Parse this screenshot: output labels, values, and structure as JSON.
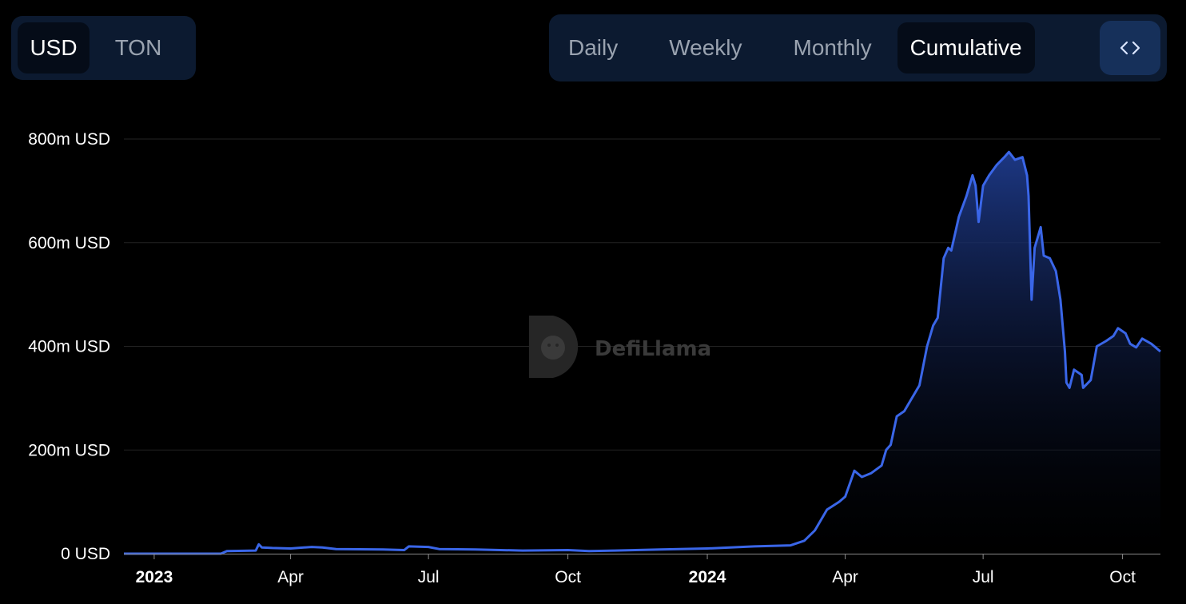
{
  "currency_toggle": {
    "options": [
      "USD",
      "TON"
    ],
    "selected": "USD"
  },
  "period_toggle": {
    "options": [
      "Daily",
      "Weekly",
      "Monthly",
      "Cumulative"
    ],
    "selected": "Cumulative",
    "embed_icon": "code-brackets-icon"
  },
  "watermark": "DefiLlama",
  "colors": {
    "line": "#3a66e8",
    "area_top": "#1e3a8a",
    "toggle_bg": "#0c1a30",
    "embed_bg": "#16305a",
    "grid": "#232323"
  },
  "chart_data": {
    "type": "area",
    "title": "",
    "xlabel": "",
    "ylabel": "",
    "ylim": [
      0,
      800000000
    ],
    "y_ticks": [
      {
        "value": 0,
        "label": "0 USD"
      },
      {
        "value": 200000000,
        "label": "200m USD"
      },
      {
        "value": 400000000,
        "label": "400m USD"
      },
      {
        "value": 600000000,
        "label": "600m USD"
      },
      {
        "value": 800000000,
        "label": "800m USD"
      }
    ],
    "x_range": [
      "2022-12-12",
      "2024-10-26"
    ],
    "x_ticks": [
      {
        "date": "2023-01-01",
        "label": "2023",
        "bold": true
      },
      {
        "date": "2023-04-01",
        "label": "Apr",
        "bold": false
      },
      {
        "date": "2023-07-01",
        "label": "Jul",
        "bold": false
      },
      {
        "date": "2023-10-01",
        "label": "Oct",
        "bold": false
      },
      {
        "date": "2024-01-01",
        "label": "2024",
        "bold": true
      },
      {
        "date": "2024-04-01",
        "label": "Apr",
        "bold": false
      },
      {
        "date": "2024-07-01",
        "label": "Jul",
        "bold": false
      },
      {
        "date": "2024-10-01",
        "label": "Oct",
        "bold": false
      }
    ],
    "grid": true,
    "legend": "none",
    "series": [
      {
        "points": [
          [
            "2022-12-12",
            0
          ],
          [
            "2023-01-15",
            0
          ],
          [
            "2023-02-14",
            0
          ],
          [
            "2023-02-18",
            5000000
          ],
          [
            "2023-03-09",
            6000000
          ],
          [
            "2023-03-11",
            18000000
          ],
          [
            "2023-03-13",
            12000000
          ],
          [
            "2023-03-20",
            11000000
          ],
          [
            "2023-04-01",
            10000000
          ],
          [
            "2023-04-15",
            13000000
          ],
          [
            "2023-04-22",
            12000000
          ],
          [
            "2023-05-01",
            9000000
          ],
          [
            "2023-06-01",
            8000000
          ],
          [
            "2023-06-15",
            7000000
          ],
          [
            "2023-06-18",
            14000000
          ],
          [
            "2023-07-01",
            13000000
          ],
          [
            "2023-07-08",
            9000000
          ],
          [
            "2023-08-01",
            8000000
          ],
          [
            "2023-09-01",
            6000000
          ],
          [
            "2023-10-01",
            7000000
          ],
          [
            "2023-10-15",
            5000000
          ],
          [
            "2023-11-01",
            6000000
          ],
          [
            "2023-12-01",
            8000000
          ],
          [
            "2024-01-01",
            10000000
          ],
          [
            "2024-02-01",
            14000000
          ],
          [
            "2024-02-25",
            16000000
          ],
          [
            "2024-03-05",
            25000000
          ],
          [
            "2024-03-12",
            45000000
          ],
          [
            "2024-03-20",
            85000000
          ],
          [
            "2024-03-28",
            100000000
          ],
          [
            "2024-04-01",
            110000000
          ],
          [
            "2024-04-07",
            160000000
          ],
          [
            "2024-04-12",
            148000000
          ],
          [
            "2024-04-18",
            155000000
          ],
          [
            "2024-04-25",
            170000000
          ],
          [
            "2024-04-28",
            200000000
          ],
          [
            "2024-05-01",
            210000000
          ],
          [
            "2024-05-05",
            265000000
          ],
          [
            "2024-05-10",
            275000000
          ],
          [
            "2024-05-15",
            300000000
          ],
          [
            "2024-05-20",
            325000000
          ],
          [
            "2024-05-25",
            400000000
          ],
          [
            "2024-05-29",
            440000000
          ],
          [
            "2024-06-01",
            455000000
          ],
          [
            "2024-06-05",
            570000000
          ],
          [
            "2024-06-08",
            590000000
          ],
          [
            "2024-06-10",
            585000000
          ],
          [
            "2024-06-15",
            650000000
          ],
          [
            "2024-06-20",
            690000000
          ],
          [
            "2024-06-24",
            730000000
          ],
          [
            "2024-06-26",
            710000000
          ],
          [
            "2024-06-28",
            640000000
          ],
          [
            "2024-07-01",
            710000000
          ],
          [
            "2024-07-05",
            730000000
          ],
          [
            "2024-07-10",
            750000000
          ],
          [
            "2024-07-15",
            765000000
          ],
          [
            "2024-07-18",
            775000000
          ],
          [
            "2024-07-22",
            760000000
          ],
          [
            "2024-07-27",
            765000000
          ],
          [
            "2024-07-30",
            730000000
          ],
          [
            "2024-07-31",
            690000000
          ],
          [
            "2024-08-02",
            490000000
          ],
          [
            "2024-08-04",
            590000000
          ],
          [
            "2024-08-06",
            610000000
          ],
          [
            "2024-08-08",
            630000000
          ],
          [
            "2024-08-10",
            575000000
          ],
          [
            "2024-08-14",
            570000000
          ],
          [
            "2024-08-18",
            545000000
          ],
          [
            "2024-08-21",
            490000000
          ],
          [
            "2024-08-24",
            390000000
          ],
          [
            "2024-08-25",
            330000000
          ],
          [
            "2024-08-27",
            320000000
          ],
          [
            "2024-08-30",
            355000000
          ],
          [
            "2024-09-04",
            345000000
          ],
          [
            "2024-09-05",
            320000000
          ],
          [
            "2024-09-10",
            335000000
          ],
          [
            "2024-09-14",
            400000000
          ],
          [
            "2024-09-20",
            410000000
          ],
          [
            "2024-09-25",
            420000000
          ],
          [
            "2024-09-28",
            435000000
          ],
          [
            "2024-10-03",
            425000000
          ],
          [
            "2024-10-06",
            405000000
          ],
          [
            "2024-10-10",
            398000000
          ],
          [
            "2024-10-14",
            415000000
          ],
          [
            "2024-10-20",
            405000000
          ],
          [
            "2024-10-26",
            390000000
          ]
        ]
      }
    ]
  }
}
